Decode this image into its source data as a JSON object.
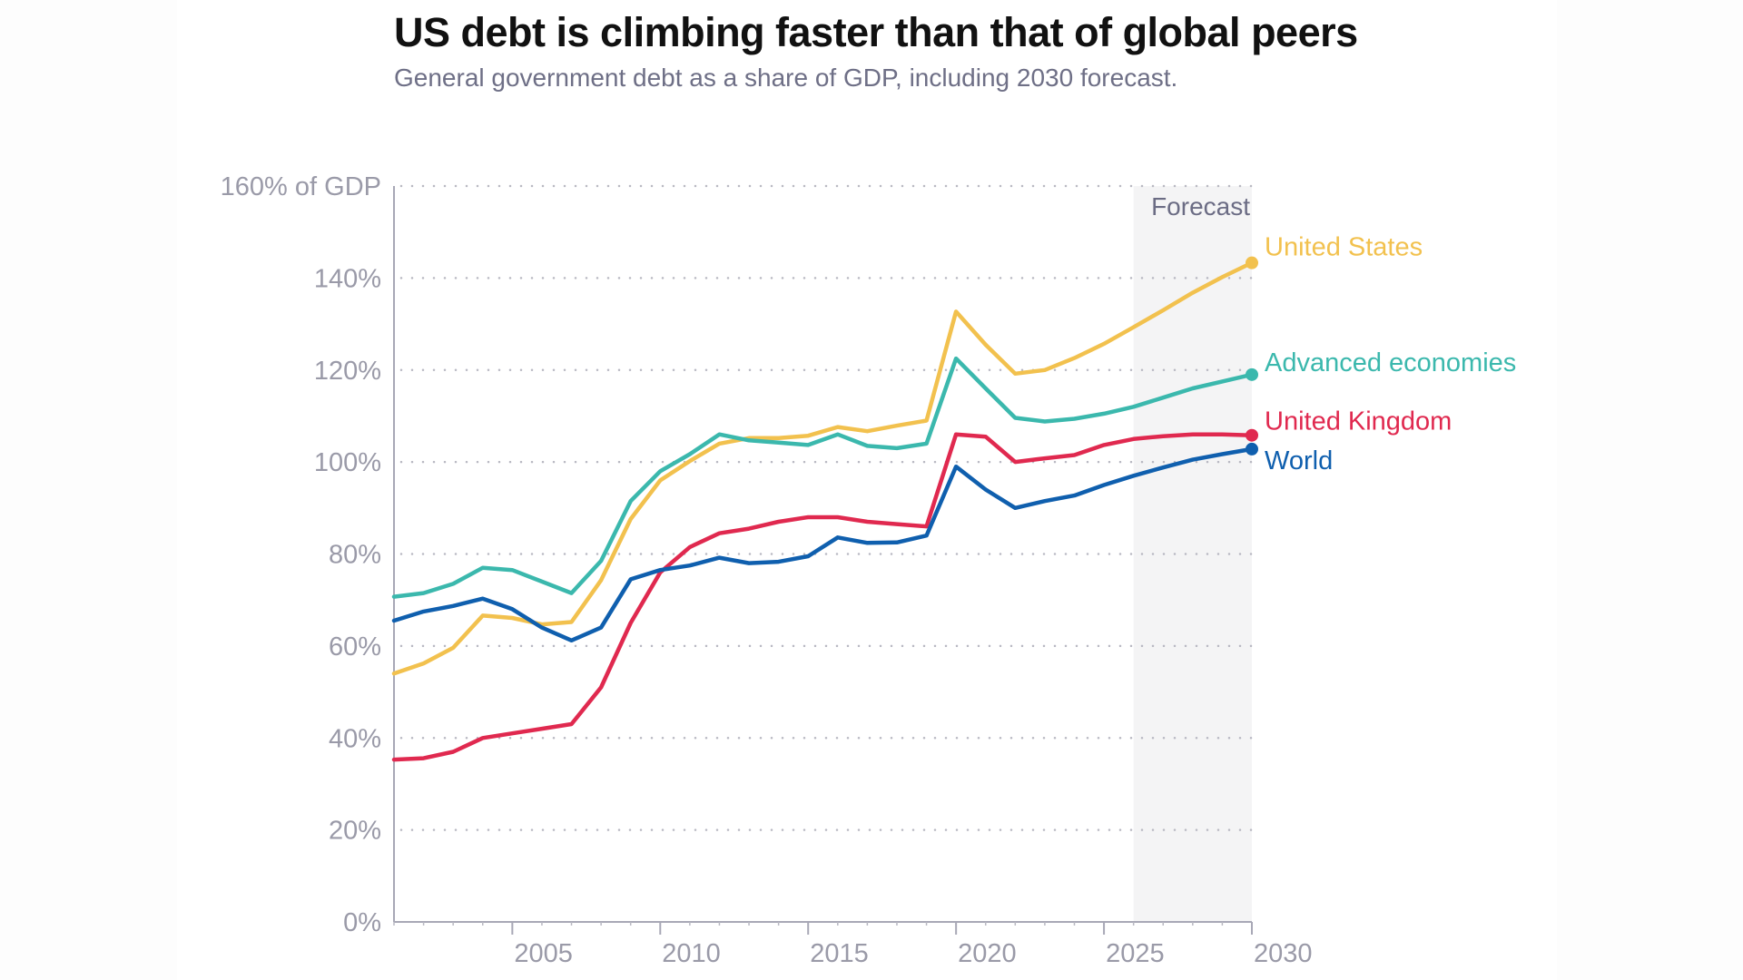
{
  "header": {
    "title": "US debt is climbing faster than that of global peers",
    "subtitle": "General government debt as a share of GDP, including 2030 forecast."
  },
  "chart_data": {
    "type": "line",
    "title": "US debt is climbing faster than that of global peers",
    "subtitle": "General government debt as a share of GDP, including 2030 forecast.",
    "xlabel": "",
    "ylabel": "% of GDP",
    "x": [
      2001,
      2002,
      2003,
      2004,
      2005,
      2006,
      2007,
      2008,
      2009,
      2010,
      2011,
      2012,
      2013,
      2014,
      2015,
      2016,
      2017,
      2018,
      2019,
      2020,
      2021,
      2022,
      2023,
      2024,
      2025,
      2026,
      2027,
      2028,
      2029,
      2030
    ],
    "xlim": [
      2001,
      2030
    ],
    "ylim": [
      0,
      160
    ],
    "yticks": [
      0,
      20,
      40,
      60,
      80,
      100,
      120,
      140,
      160
    ],
    "ytick_labels": [
      "0%",
      "20%",
      "40%",
      "60%",
      "80%",
      "100%",
      "120%",
      "140%",
      "160% of GDP"
    ],
    "xticks": [
      2005,
      2010,
      2015,
      2020,
      2025,
      2030
    ],
    "xtick_labels": [
      "2005",
      "2010",
      "2015",
      "2020",
      "2025",
      "2030"
    ],
    "grid": "horizontal dotted",
    "legend": "direct labels at line ends (right)",
    "forecast_region": {
      "label": "Forecast",
      "start": 2026,
      "end": 2030,
      "color": "#f4f4f5"
    },
    "series": [
      {
        "name": "United States",
        "color": "#f2c14e",
        "values": [
          54,
          56.2,
          59.6,
          66.6,
          66.1,
          64.7,
          65.2,
          74.3,
          87.6,
          96,
          100.2,
          104,
          105.2,
          105.2,
          105.7,
          107.6,
          106.7,
          107.9,
          109,
          132.7,
          125.5,
          119.2,
          120,
          122.6,
          125.7,
          129.3,
          133,
          136.8,
          140.2,
          143.3
        ]
      },
      {
        "name": "Advanced economies",
        "color": "#3bb8ad",
        "values": [
          70.7,
          71.5,
          73.5,
          77,
          76.5,
          74,
          71.5,
          78.5,
          91.5,
          98,
          101.7,
          106,
          104.7,
          104.2,
          103.7,
          106,
          103.5,
          103,
          104,
          122.5,
          116,
          109.6,
          108.8,
          109.4,
          110.5,
          112,
          114,
          116,
          117.5,
          119
        ]
      },
      {
        "name": "United Kingdom",
        "color": "#e0294f",
        "values": [
          35.3,
          35.6,
          37,
          40,
          41,
          42,
          43,
          51,
          65,
          76,
          81.5,
          84.5,
          85.5,
          87,
          88,
          88,
          87,
          86.5,
          86,
          106,
          105.5,
          100,
          100.8,
          101.5,
          103.7,
          105,
          105.6,
          106,
          106,
          105.8
        ]
      },
      {
        "name": "World",
        "color": "#0f5fae",
        "values": [
          65.5,
          67.5,
          68.7,
          70.3,
          68,
          64,
          61.2,
          64,
          74.5,
          76.5,
          77.5,
          79.2,
          78,
          78.3,
          79.5,
          83.6,
          82.4,
          82.5,
          84,
          99,
          94,
          90,
          91.5,
          92.7,
          95,
          97,
          98.8,
          100.5,
          101.7,
          102.8
        ]
      }
    ]
  }
}
